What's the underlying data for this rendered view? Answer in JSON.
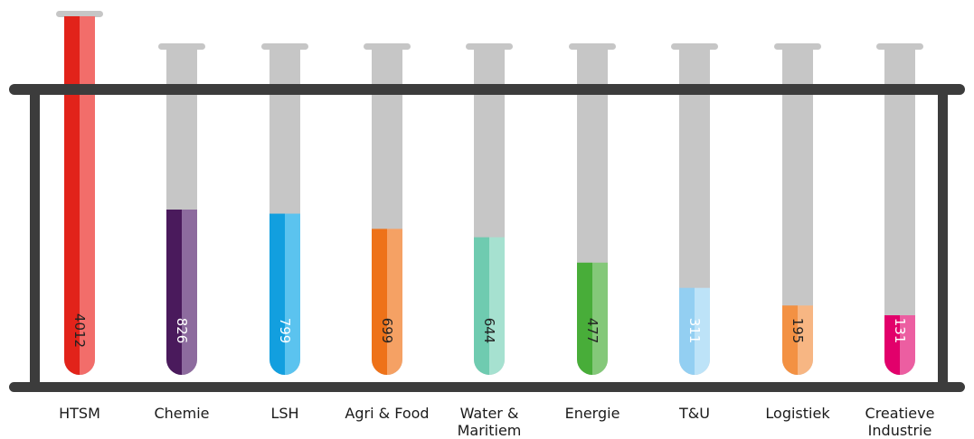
{
  "chart_data": {
    "type": "bar",
    "style": "test-tubes",
    "categories": [
      "HTSM",
      "Chemie",
      "LSH",
      "Agri & Food",
      "Water & Maritiem",
      "Energie",
      "T&U",
      "Logistiek",
      "Creatieve Industrie"
    ],
    "category_lines": [
      [
        "HTSM"
      ],
      [
        "Chemie"
      ],
      [
        "LSH"
      ],
      [
        "Agri & Food"
      ],
      [
        "Water &",
        "Maritiem"
      ],
      [
        "Energie"
      ],
      [
        "T&U"
      ],
      [
        "Logistiek"
      ],
      [
        "Creatieve",
        "Industrie"
      ]
    ],
    "values": [
      4012,
      826,
      799,
      699,
      644,
      477,
      311,
      195,
      131
    ],
    "value_labels": [
      "4012",
      "826",
      "799",
      "699",
      "644",
      "477",
      "311",
      "195",
      "131"
    ],
    "colors": [
      {
        "dark": "#e2231a",
        "light": "#f26d6a"
      },
      {
        "dark": "#4a1a5c",
        "light": "#8d6b9e"
      },
      {
        "dark": "#129fdf",
        "light": "#5bc3ef"
      },
      {
        "dark": "#ee7219",
        "light": "#f5a164"
      },
      {
        "dark": "#6fcbb0",
        "light": "#a6e1d0"
      },
      {
        "dark": "#48ad39",
        "light": "#84c879"
      },
      {
        "dark": "#93cff2",
        "light": "#bde3f8"
      },
      {
        "dark": "#f39143",
        "light": "#f7b683"
      },
      {
        "dark": "#e2006b",
        "light": "#ec5ea1"
      }
    ],
    "empty_color": "#c6c6c6",
    "rack_color": "#3c3c3c",
    "value_label_color_dark": "#222222",
    "value_label_color_light": "#ffffff"
  }
}
